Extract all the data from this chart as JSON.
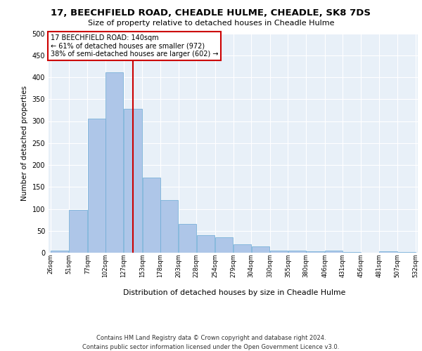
{
  "title": "17, BEECHFIELD ROAD, CHEADLE HULME, CHEADLE, SK8 7DS",
  "subtitle": "Size of property relative to detached houses in Cheadle Hulme",
  "xlabel": "Distribution of detached houses by size in Cheadle Hulme",
  "ylabel": "Number of detached properties",
  "bar_color": "#aec6e8",
  "bar_edge_color": "#6aaad4",
  "bg_color": "#e8f0f8",
  "grid_color": "#ffffff",
  "red_line_x": 140,
  "annotation_line1": "17 BEECHFIELD ROAD: 140sqm",
  "annotation_line2": "← 61% of detached houses are smaller (972)",
  "annotation_line3": "38% of semi-detached houses are larger (602) →",
  "annotation_box_color": "#cc0000",
  "footer_line1": "Contains HM Land Registry data © Crown copyright and database right 2024.",
  "footer_line2": "Contains public sector information licensed under the Open Government Licence v3.0.",
  "bin_edges": [
    26,
    51,
    77,
    102,
    127,
    153,
    178,
    203,
    228,
    254,
    279,
    304,
    330,
    355,
    380,
    406,
    431,
    456,
    481,
    507,
    532
  ],
  "counts": [
    5,
    98,
    305,
    411,
    328,
    172,
    120,
    65,
    40,
    35,
    20,
    15,
    5,
    5,
    3,
    5,
    1,
    0,
    3,
    2
  ],
  "ylim_max": 500,
  "yticks": [
    0,
    50,
    100,
    150,
    200,
    250,
    300,
    350,
    400,
    450,
    500
  ]
}
